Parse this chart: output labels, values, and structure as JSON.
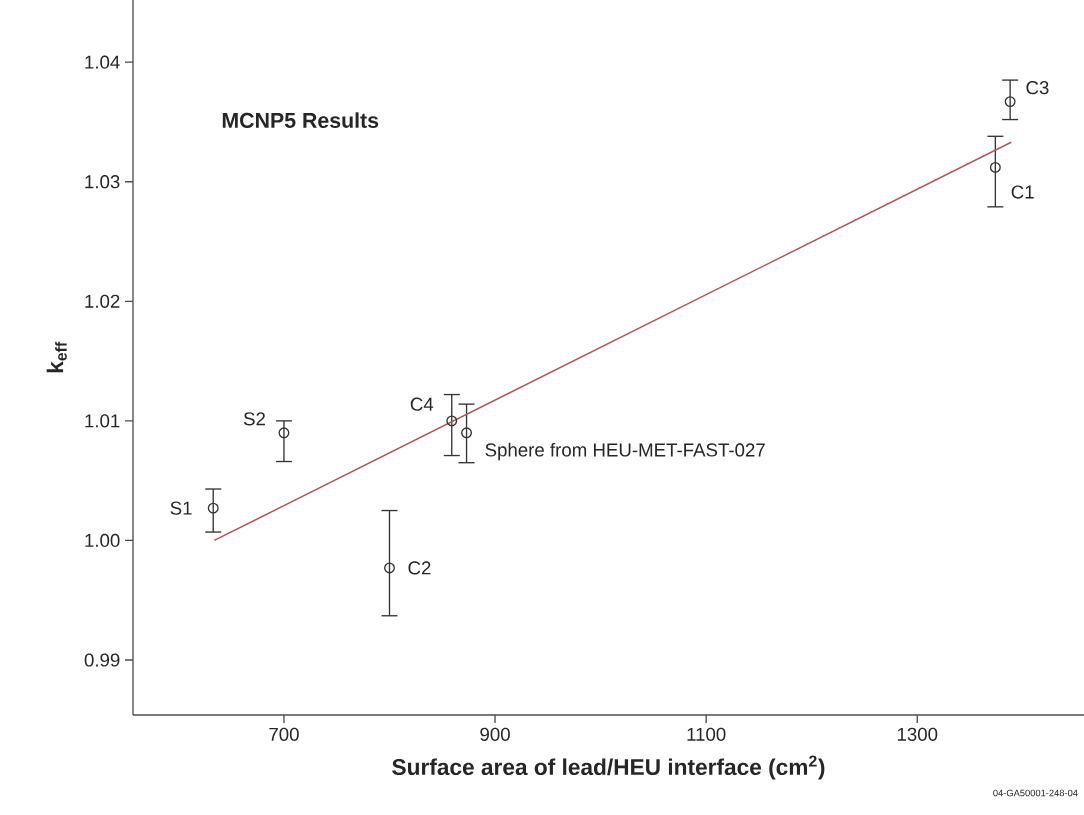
{
  "chart_data": {
    "type": "scatter",
    "title": "MCNP5 Results",
    "xlabel": "Surface area of lead/HEU interface (cm$^{2}$)",
    "ylabel": "k$_{eff}$",
    "xlim": [
      557,
      1458
    ],
    "ylim": [
      0.9854,
      1.0452
    ],
    "xticks": [
      700,
      900,
      1100,
      1300
    ],
    "yticks": [
      0.99,
      {
        "value": 1.0,
        "label": "1.00"
      },
      1.01,
      1.02,
      1.03,
      1.04
    ],
    "series": [
      {
        "marker": "circle",
        "color": "#333333",
        "x": [
          633,
          700,
          800,
          859,
          873,
          1374,
          1388
        ],
        "values": [
          1.0027,
          1.009,
          0.9977,
          1.01,
          1.009,
          1.0312,
          1.0367
        ],
        "errors": [
          [
            1.0007,
            1.0043
          ],
          [
            1.0066,
            1.01
          ],
          [
            0.9937,
            1.0025
          ],
          [
            1.0071,
            1.0122
          ],
          [
            1.0065,
            1.0114
          ],
          [
            1.0279,
            1.0338
          ],
          [
            1.0352,
            1.0385
          ]
        ]
      },
      {
        "type": "line",
        "color": "#b5535a",
        "x": [
          634,
          1389
        ],
        "values": [
          1.0,
          1.0333
        ]
      }
    ],
    "annotations": [
      {
        "text": "S1",
        "x": 633,
        "y": 1.0027
      },
      {
        "text": "S2",
        "x": 700,
        "y": 1.009
      },
      {
        "text": "C2",
        "x": 800,
        "y": 0.9977
      },
      {
        "text": "C4",
        "x": 859,
        "y": 1.01
      },
      {
        "text": "Sphere from HEU-MET-FAST-027",
        "x": 873,
        "y": 1.009
      },
      {
        "text": "C1",
        "x": 1374,
        "y": 1.0312
      },
      {
        "text": "C3",
        "x": 1388,
        "y": 1.0367
      },
      "04-GA50001-248-04"
    ]
  }
}
